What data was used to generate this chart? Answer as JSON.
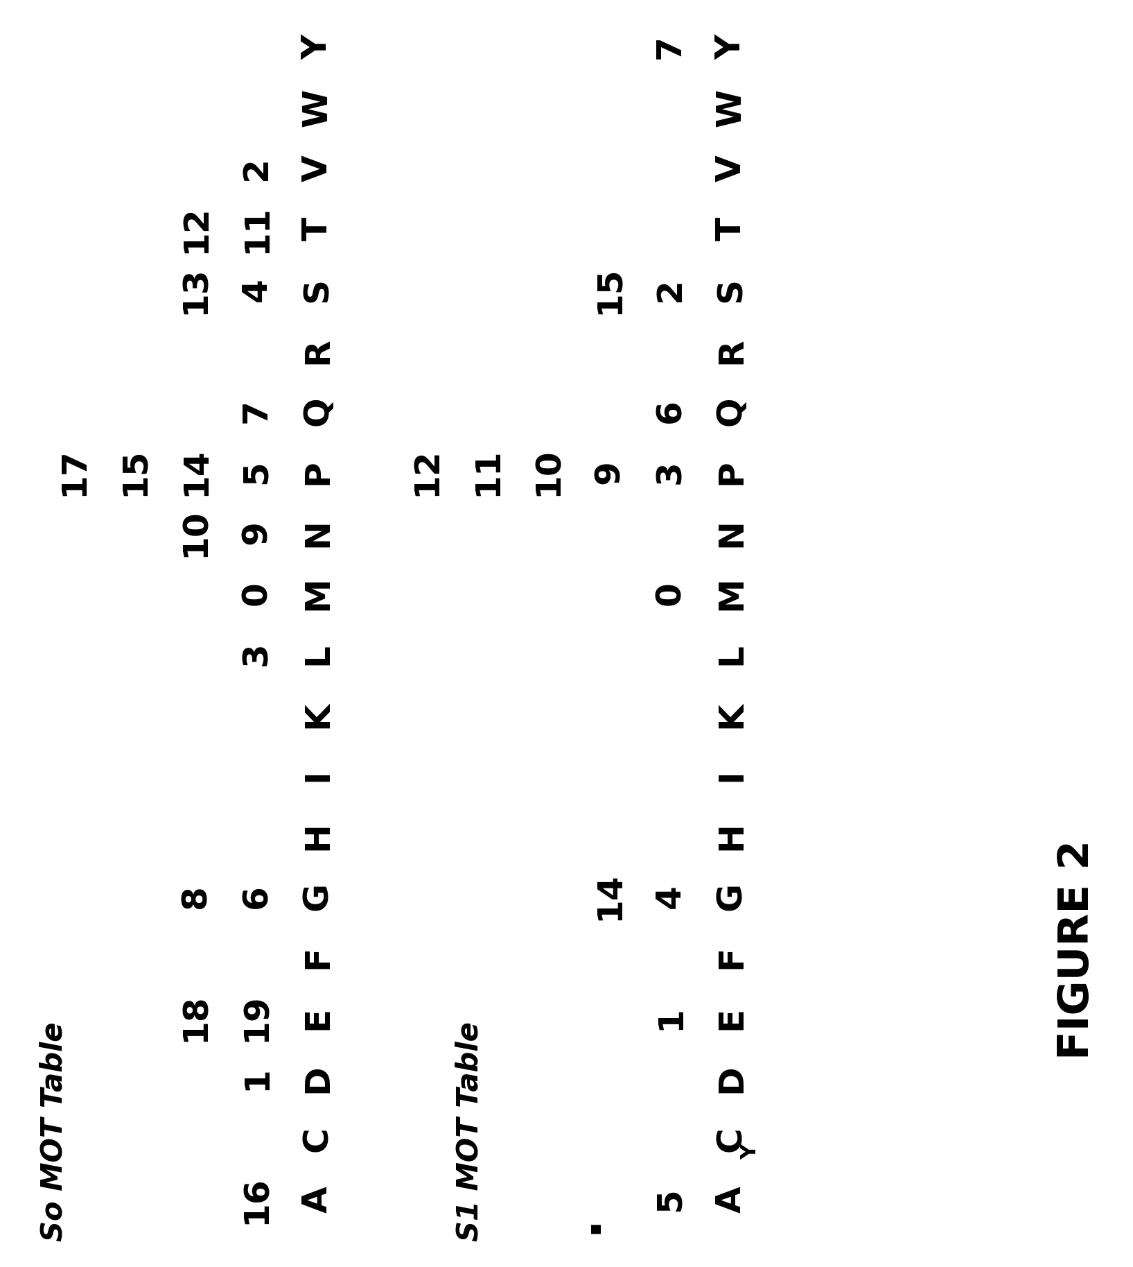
{
  "title": "FIGURE 2",
  "so_table_title": "So MOT Table",
  "s1_table_title": "S1 MOT Table",
  "symbols": [
    "A",
    "C",
    "D",
    "E",
    "F",
    "G",
    "H",
    "I",
    "K",
    "L",
    "M",
    "N",
    "P",
    "Q",
    "R",
    "S",
    "T",
    "V",
    "W",
    "Y"
  ],
  "so_data": {
    "A": [
      16
    ],
    "C": [],
    "D": [
      1
    ],
    "E": [
      19,
      18
    ],
    "F": [],
    "G": [
      6,
      8
    ],
    "H": [],
    "I": [],
    "K": [],
    "L": [
      3
    ],
    "M": [
      0
    ],
    "N": [
      9,
      10
    ],
    "P": [
      5,
      14,
      15,
      17
    ],
    "Q": [
      7
    ],
    "R": [],
    "S": [
      4,
      13
    ],
    "T": [
      11,
      12
    ],
    "V": [
      2
    ],
    "W": [],
    "Y": []
  },
  "s1_data": {
    "A": [
      5
    ],
    "C": [],
    "D": [],
    "E": [
      1
    ],
    "F": [],
    "G": [
      4,
      14
    ],
    "H": [],
    "I": [],
    "K": [],
    "L": [],
    "M": [
      0
    ],
    "N": [],
    "P": [
      3,
      9,
      10,
      11,
      12
    ],
    "Q": [
      6
    ],
    "R": [],
    "S": [
      2,
      15
    ],
    "T": [],
    "V": [],
    "W": [],
    "Y": [
      7
    ]
  },
  "s1_c_subscript": "Y",
  "background_color": "#ffffff",
  "text_color": "#000000",
  "sym_fontsize": 36,
  "val_fontsize": 36,
  "title_fontsize": 44,
  "table_title_fontsize": 30
}
